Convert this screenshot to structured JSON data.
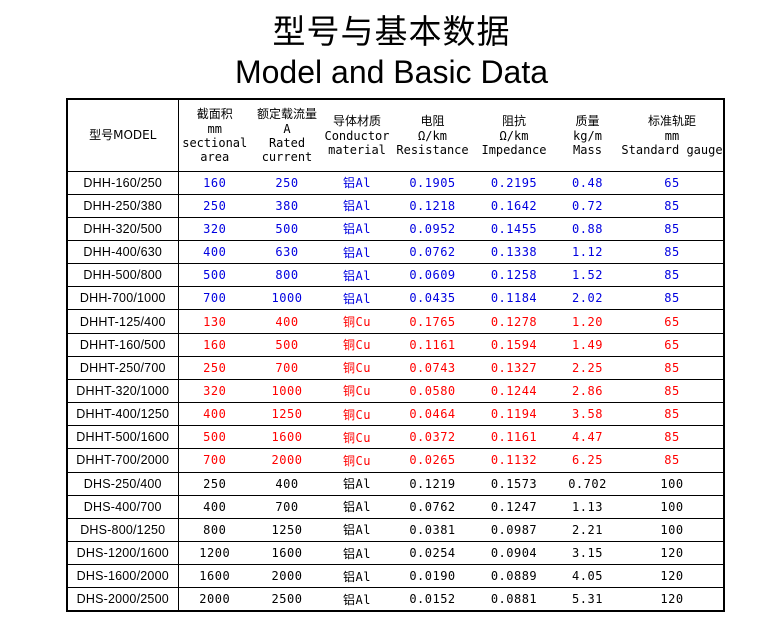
{
  "page": {
    "title_zh": "型号与基本数据",
    "title_en": "Model and Basic Data"
  },
  "colors": {
    "blue": "#0000E0",
    "red": "#FF0000",
    "black": "#000000",
    "border": "#000000",
    "background": "#FFFFFF"
  },
  "table": {
    "columns": [
      {
        "key": "model",
        "lines": [
          "型号MODEL"
        ]
      },
      {
        "key": "area",
        "lines": [
          "截面积",
          "mm",
          "sectional",
          "area"
        ]
      },
      {
        "key": "current",
        "lines": [
          "额定载流量",
          "A",
          "Rated",
          "current"
        ]
      },
      {
        "key": "material",
        "lines": [
          "导体材质",
          "Conductor",
          "material"
        ]
      },
      {
        "key": "resistance",
        "lines": [
          "电阻",
          "Ω/km",
          "Resistance"
        ]
      },
      {
        "key": "impedance",
        "lines": [
          "阻抗",
          "Ω/km",
          "Impedance"
        ]
      },
      {
        "key": "mass",
        "lines": [
          "质量",
          "kg/m",
          "Mass"
        ]
      },
      {
        "key": "gauge",
        "lines": [
          "标准轨距",
          "mm",
          "Standard gauge"
        ]
      }
    ],
    "rows": [
      {
        "model": "DHH-160/250",
        "values": [
          "160",
          "250",
          "铝Al",
          "0.1905",
          "0.2195",
          "0.48",
          "65"
        ],
        "color": "blue"
      },
      {
        "model": "DHH-250/380",
        "values": [
          "250",
          "380",
          "铝Al",
          "0.1218",
          "0.1642",
          "0.72",
          "85"
        ],
        "color": "blue"
      },
      {
        "model": "DHH-320/500",
        "values": [
          "320",
          "500",
          "铝Al",
          "0.0952",
          "0.1455",
          "0.88",
          "85"
        ],
        "color": "blue"
      },
      {
        "model": "DHH-400/630",
        "values": [
          "400",
          "630",
          "铝Al",
          "0.0762",
          "0.1338",
          "1.12",
          "85"
        ],
        "color": "blue"
      },
      {
        "model": "DHH-500/800",
        "values": [
          "500",
          "800",
          "铝Al",
          "0.0609",
          "0.1258",
          "1.52",
          "85"
        ],
        "color": "blue"
      },
      {
        "model": "DHH-700/1000",
        "values": [
          "700",
          "1000",
          "铝Al",
          "0.0435",
          "0.1184",
          "2.02",
          "85"
        ],
        "color": "blue"
      },
      {
        "model": "DHHT-125/400",
        "values": [
          "130",
          "400",
          "铜Cu",
          "0.1765",
          "0.1278",
          "1.20",
          "65"
        ],
        "color": "red"
      },
      {
        "model": "DHHT-160/500",
        "values": [
          "160",
          "500",
          "铜Cu",
          "0.1161",
          "0.1594",
          "1.49",
          "65"
        ],
        "color": "red"
      },
      {
        "model": "DHHT-250/700",
        "values": [
          "250",
          "700",
          "铜Cu",
          "0.0743",
          "0.1327",
          "2.25",
          "85"
        ],
        "color": "red"
      },
      {
        "model": "DHHT-320/1000",
        "values": [
          "320",
          "1000",
          "铜Cu",
          "0.0580",
          "0.1244",
          "2.86",
          "85"
        ],
        "color": "red"
      },
      {
        "model": "DHHT-400/1250",
        "values": [
          "400",
          "1250",
          "铜Cu",
          "0.0464",
          "0.1194",
          "3.58",
          "85"
        ],
        "color": "red"
      },
      {
        "model": "DHHT-500/1600",
        "values": [
          "500",
          "1600",
          "铜Cu",
          "0.0372",
          "0.1161",
          "4.47",
          "85"
        ],
        "color": "red"
      },
      {
        "model": "DHHT-700/2000",
        "values": [
          "700",
          "2000",
          "铜Cu",
          "0.0265",
          "0.1132",
          "6.25",
          "85"
        ],
        "color": "red"
      },
      {
        "model": "DHS-250/400",
        "values": [
          "250",
          "400",
          "铝Al",
          "0.1219",
          "0.1573",
          "0.702",
          "100"
        ],
        "color": "black"
      },
      {
        "model": "DHS-400/700",
        "values": [
          "400",
          "700",
          "铝Al",
          "0.0762",
          "0.1247",
          "1.13",
          "100"
        ],
        "color": "black"
      },
      {
        "model": "DHS-800/1250",
        "values": [
          "800",
          "1250",
          "铝Al",
          "0.0381",
          "0.0987",
          "2.21",
          "100"
        ],
        "color": "black"
      },
      {
        "model": "DHS-1200/1600",
        "values": [
          "1200",
          "1600",
          "铝Al",
          "0.0254",
          "0.0904",
          "3.15",
          "120"
        ],
        "color": "black"
      },
      {
        "model": "DHS-1600/2000",
        "values": [
          "1600",
          "2000",
          "铝Al",
          "0.0190",
          "0.0889",
          "4.05",
          "120"
        ],
        "color": "black"
      },
      {
        "model": "DHS-2000/2500",
        "values": [
          "2000",
          "2500",
          "铝Al",
          "0.0152",
          "0.0881",
          "5.31",
          "120"
        ],
        "color": "black"
      }
    ]
  }
}
